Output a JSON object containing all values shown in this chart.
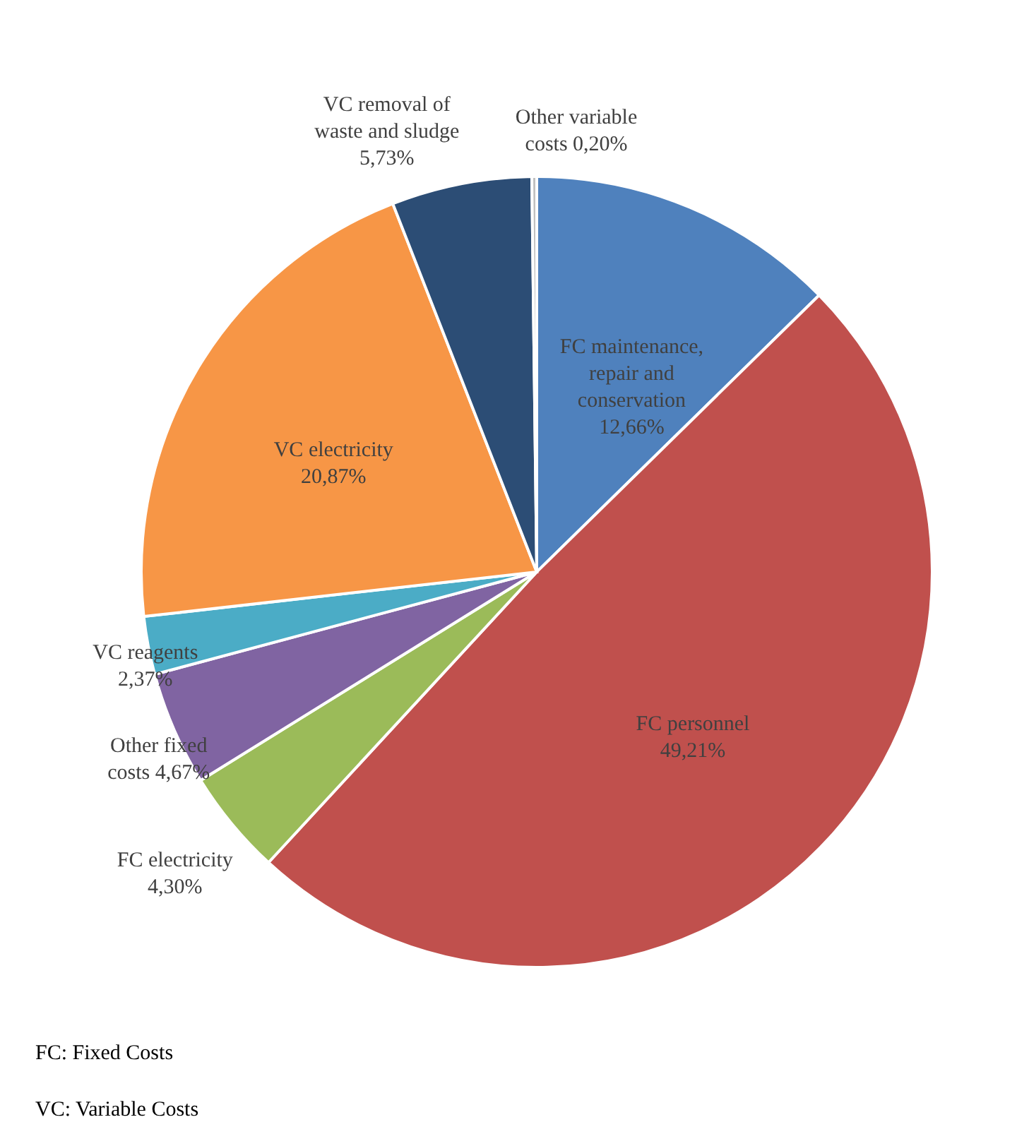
{
  "chart_data": {
    "type": "pie",
    "categories": [
      "FC maintenance, repair and conservation",
      "FC personnel",
      "FC electricity",
      "Other fixed costs",
      "VC reagents",
      "VC electricity",
      "VC removal of waste and sludge",
      "Other variable costs"
    ],
    "values": [
      12.66,
      49.21,
      4.3,
      4.67,
      2.37,
      20.87,
      5.73,
      0.2
    ],
    "value_labels": [
      "12,66%",
      "49,21%",
      "4,30%",
      "4,67%",
      "2,37%",
      "20,87%",
      "5,73%",
      "0,20%"
    ],
    "colors": [
      "#4f81bd",
      "#c0504d",
      "#9bbb59",
      "#8064a2",
      "#4bacc6",
      "#f79646",
      "#2c4d75",
      "#c0c0c0"
    ],
    "annotations": [
      "FC: Fixed Costs",
      "VC: Variable Costs"
    ]
  }
}
